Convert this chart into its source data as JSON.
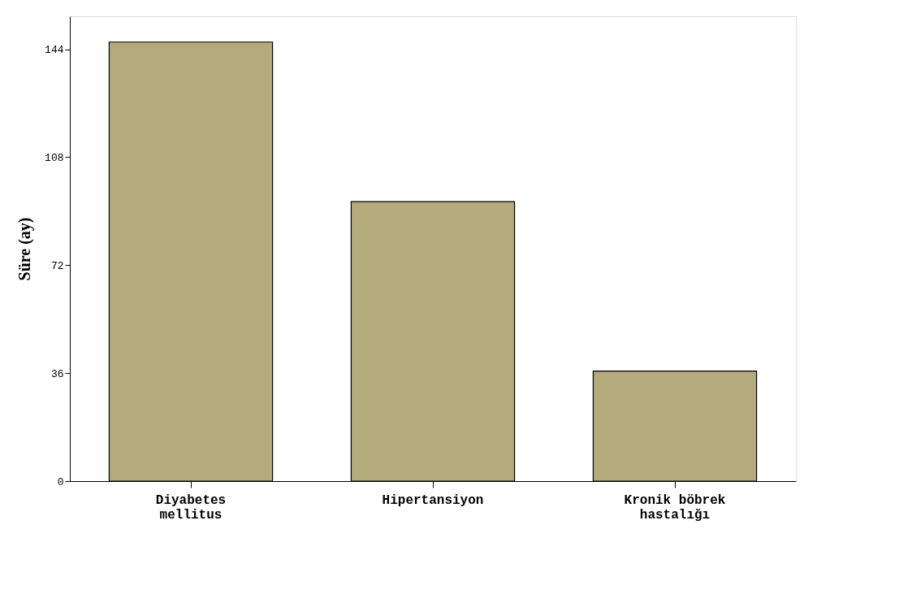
{
  "chart_data": {
    "type": "bar",
    "ylabel": "Süre (ay)",
    "categories": [
      "Diyabetes mellitus",
      "Hipertansiyon",
      "Kronik böbrek hastalığı"
    ],
    "values": [
      146.4,
      93.2,
      36.7
    ],
    "color": "#b3ab7c",
    "ylim": [
      0,
      155
    ],
    "yticks": [
      0,
      36,
      72,
      108,
      144
    ],
    "grid": false
  }
}
